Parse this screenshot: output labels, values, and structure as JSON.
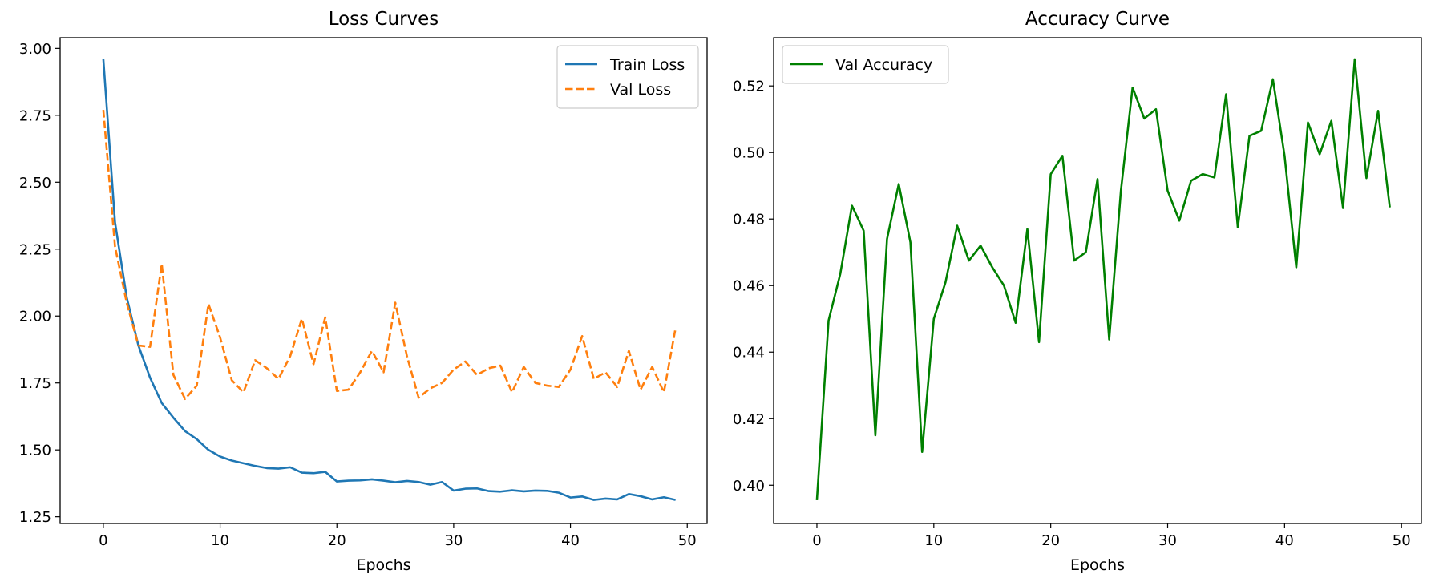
{
  "chart_data": [
    {
      "type": "line",
      "title": "Loss Curves",
      "xlabel": "Epochs",
      "ylabel": "",
      "xlim": [
        -3.7,
        51.7
      ],
      "ylim": [
        1.225,
        3.04
      ],
      "xticks": [
        0,
        10,
        20,
        30,
        40,
        50
      ],
      "yticks": [
        1.25,
        1.5,
        1.75,
        2.0,
        2.25,
        2.5,
        2.75,
        3.0
      ],
      "ytick_labels": [
        "1.25",
        "1.50",
        "1.75",
        "2.00",
        "2.25",
        "2.50",
        "2.75",
        "3.00"
      ],
      "legend_position": "upper right",
      "grid": false,
      "x": [
        0,
        1,
        2,
        3,
        4,
        5,
        6,
        7,
        8,
        9,
        10,
        11,
        12,
        13,
        14,
        15,
        16,
        17,
        18,
        19,
        20,
        21,
        22,
        23,
        24,
        25,
        26,
        27,
        28,
        29,
        30,
        31,
        32,
        33,
        34,
        35,
        36,
        37,
        38,
        39,
        40,
        41,
        42,
        43,
        44,
        45,
        46,
        47,
        48,
        49
      ],
      "series": [
        {
          "name": "Train Loss",
          "color": "#1f77b4",
          "style": "solid",
          "values": [
            2.96,
            2.35,
            2.07,
            1.89,
            1.77,
            1.675,
            1.62,
            1.57,
            1.54,
            1.5,
            1.475,
            1.46,
            1.45,
            1.44,
            1.432,
            1.43,
            1.435,
            1.415,
            1.413,
            1.418,
            1.382,
            1.385,
            1.386,
            1.39,
            1.385,
            1.379,
            1.384,
            1.38,
            1.37,
            1.38,
            1.348,
            1.355,
            1.356,
            1.346,
            1.344,
            1.349,
            1.345,
            1.348,
            1.347,
            1.34,
            1.322,
            1.326,
            1.313,
            1.318,
            1.315,
            1.335,
            1.327,
            1.315,
            1.323,
            1.313
          ]
        },
        {
          "name": "Val Loss",
          "color": "#ff7f0e",
          "style": "dashed",
          "values": [
            2.77,
            2.26,
            2.05,
            1.89,
            1.885,
            2.195,
            1.78,
            1.69,
            1.74,
            2.045,
            1.92,
            1.76,
            1.715,
            1.835,
            1.805,
            1.765,
            1.85,
            1.99,
            1.82,
            1.995,
            1.72,
            1.725,
            1.79,
            1.87,
            1.79,
            2.05,
            1.85,
            1.695,
            1.73,
            1.75,
            1.8,
            1.83,
            1.78,
            1.805,
            1.815,
            1.715,
            1.81,
            1.75,
            1.74,
            1.735,
            1.8,
            1.925,
            1.765,
            1.79,
            1.735,
            1.87,
            1.725,
            1.81,
            1.715,
            1.955
          ]
        }
      ]
    },
    {
      "type": "line",
      "title": "Accuracy Curve",
      "xlabel": "Epochs",
      "ylabel": "",
      "xlim": [
        -3.7,
        51.7
      ],
      "ylim": [
        0.3885,
        0.5345
      ],
      "xticks": [
        0,
        10,
        20,
        30,
        40,
        50
      ],
      "yticks": [
        0.4,
        0.42,
        0.44,
        0.46,
        0.48,
        0.5,
        0.52
      ],
      "ytick_labels": [
        "0.40",
        "0.42",
        "0.44",
        "0.46",
        "0.48",
        "0.50",
        "0.52"
      ],
      "legend_position": "upper left",
      "grid": false,
      "x": [
        0,
        1,
        2,
        3,
        4,
        5,
        6,
        7,
        8,
        9,
        10,
        11,
        12,
        13,
        14,
        15,
        16,
        17,
        18,
        19,
        20,
        21,
        22,
        23,
        24,
        25,
        26,
        27,
        28,
        29,
        30,
        31,
        32,
        33,
        34,
        35,
        36,
        37,
        38,
        39,
        40,
        41,
        42,
        43,
        44,
        45,
        46,
        47,
        48,
        49
      ],
      "series": [
        {
          "name": "Val Accuracy",
          "color": "#008000",
          "style": "solid",
          "values": [
            0.3955,
            0.4495,
            0.4635,
            0.484,
            0.4765,
            0.415,
            0.474,
            0.4905,
            0.473,
            0.41,
            0.45,
            0.461,
            0.478,
            0.4675,
            0.472,
            0.4655,
            0.46,
            0.4488,
            0.477,
            0.443,
            0.4935,
            0.499,
            0.4675,
            0.47,
            0.492,
            0.4438,
            0.4885,
            0.5195,
            0.5102,
            0.513,
            0.4885,
            0.4795,
            0.4915,
            0.4935,
            0.4925,
            0.5175,
            0.4775,
            0.505,
            0.5065,
            0.522,
            0.499,
            0.4655,
            0.509,
            0.4995,
            0.5095,
            0.4833,
            0.528,
            0.4923,
            0.5125,
            0.4835
          ]
        }
      ]
    }
  ]
}
